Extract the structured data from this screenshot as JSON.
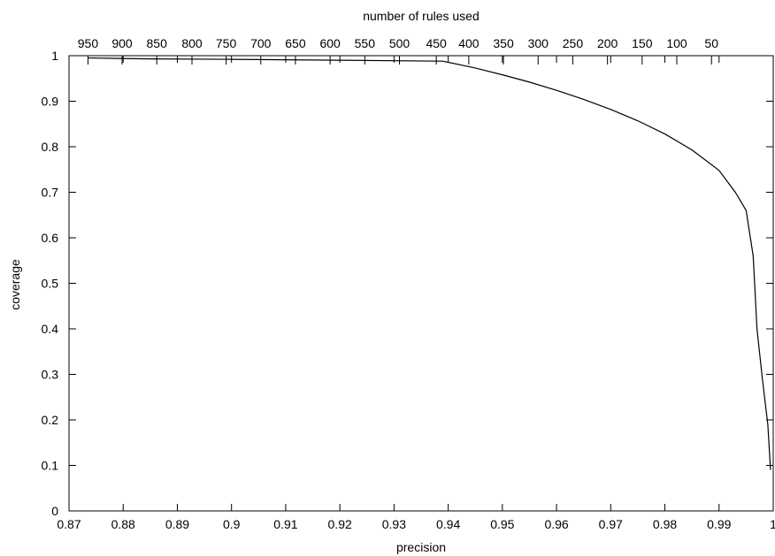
{
  "chart_data": {
    "type": "line",
    "xlabel": "precision",
    "ylabel": "coverage",
    "x2label": "number of rules used",
    "xlim": [
      0.87,
      1.0
    ],
    "ylim": [
      0,
      1
    ],
    "xticks": [
      "0.87",
      "0.88",
      "0.89",
      "0.9",
      "0.91",
      "0.92",
      "0.93",
      "0.94",
      "0.95",
      "0.96",
      "0.97",
      "0.98",
      "0.99",
      "1"
    ],
    "yticks": [
      "0",
      "0.1",
      "0.2",
      "0.3",
      "0.4",
      "0.5",
      "0.6",
      "0.7",
      "0.8",
      "0.9",
      "1"
    ],
    "x2ticks": [
      {
        "label": "950",
        "precision": 0.8735
      },
      {
        "label": "900",
        "precision": 0.8798
      },
      {
        "label": "850",
        "precision": 0.8862
      },
      {
        "label": "800",
        "precision": 0.8927
      },
      {
        "label": "750",
        "precision": 0.899
      },
      {
        "label": "700",
        "precision": 0.9054
      },
      {
        "label": "650",
        "precision": 0.9118
      },
      {
        "label": "600",
        "precision": 0.9182
      },
      {
        "label": "550",
        "precision": 0.9246
      },
      {
        "label": "500",
        "precision": 0.931
      },
      {
        "label": "450",
        "precision": 0.9378
      },
      {
        "label": "400",
        "precision": 0.9438
      },
      {
        "label": "350",
        "precision": 0.9502
      },
      {
        "label": "300",
        "precision": 0.9566
      },
      {
        "label": "250",
        "precision": 0.963
      },
      {
        "label": "200",
        "precision": 0.9694
      },
      {
        "label": "150",
        "precision": 0.9758
      },
      {
        "label": "100",
        "precision": 0.9822
      },
      {
        "label": "50",
        "precision": 0.9886
      }
    ],
    "grid": false,
    "legend": "none",
    "series": [
      {
        "color": "#000000",
        "x": [
          0.8735,
          0.885,
          0.9,
          0.92,
          0.939,
          0.945,
          0.95,
          0.955,
          0.96,
          0.965,
          0.97,
          0.975,
          0.98,
          0.985,
          0.99,
          0.993,
          0.995,
          0.9963,
          0.997,
          0.998,
          0.999,
          0.9995
        ],
        "y": [
          0.995,
          0.993,
          0.992,
          0.99,
          0.988,
          0.973,
          0.958,
          0.942,
          0.924,
          0.904,
          0.882,
          0.857,
          0.828,
          0.793,
          0.748,
          0.7,
          0.66,
          0.56,
          0.4,
          0.29,
          0.19,
          0.09
        ]
      }
    ]
  }
}
